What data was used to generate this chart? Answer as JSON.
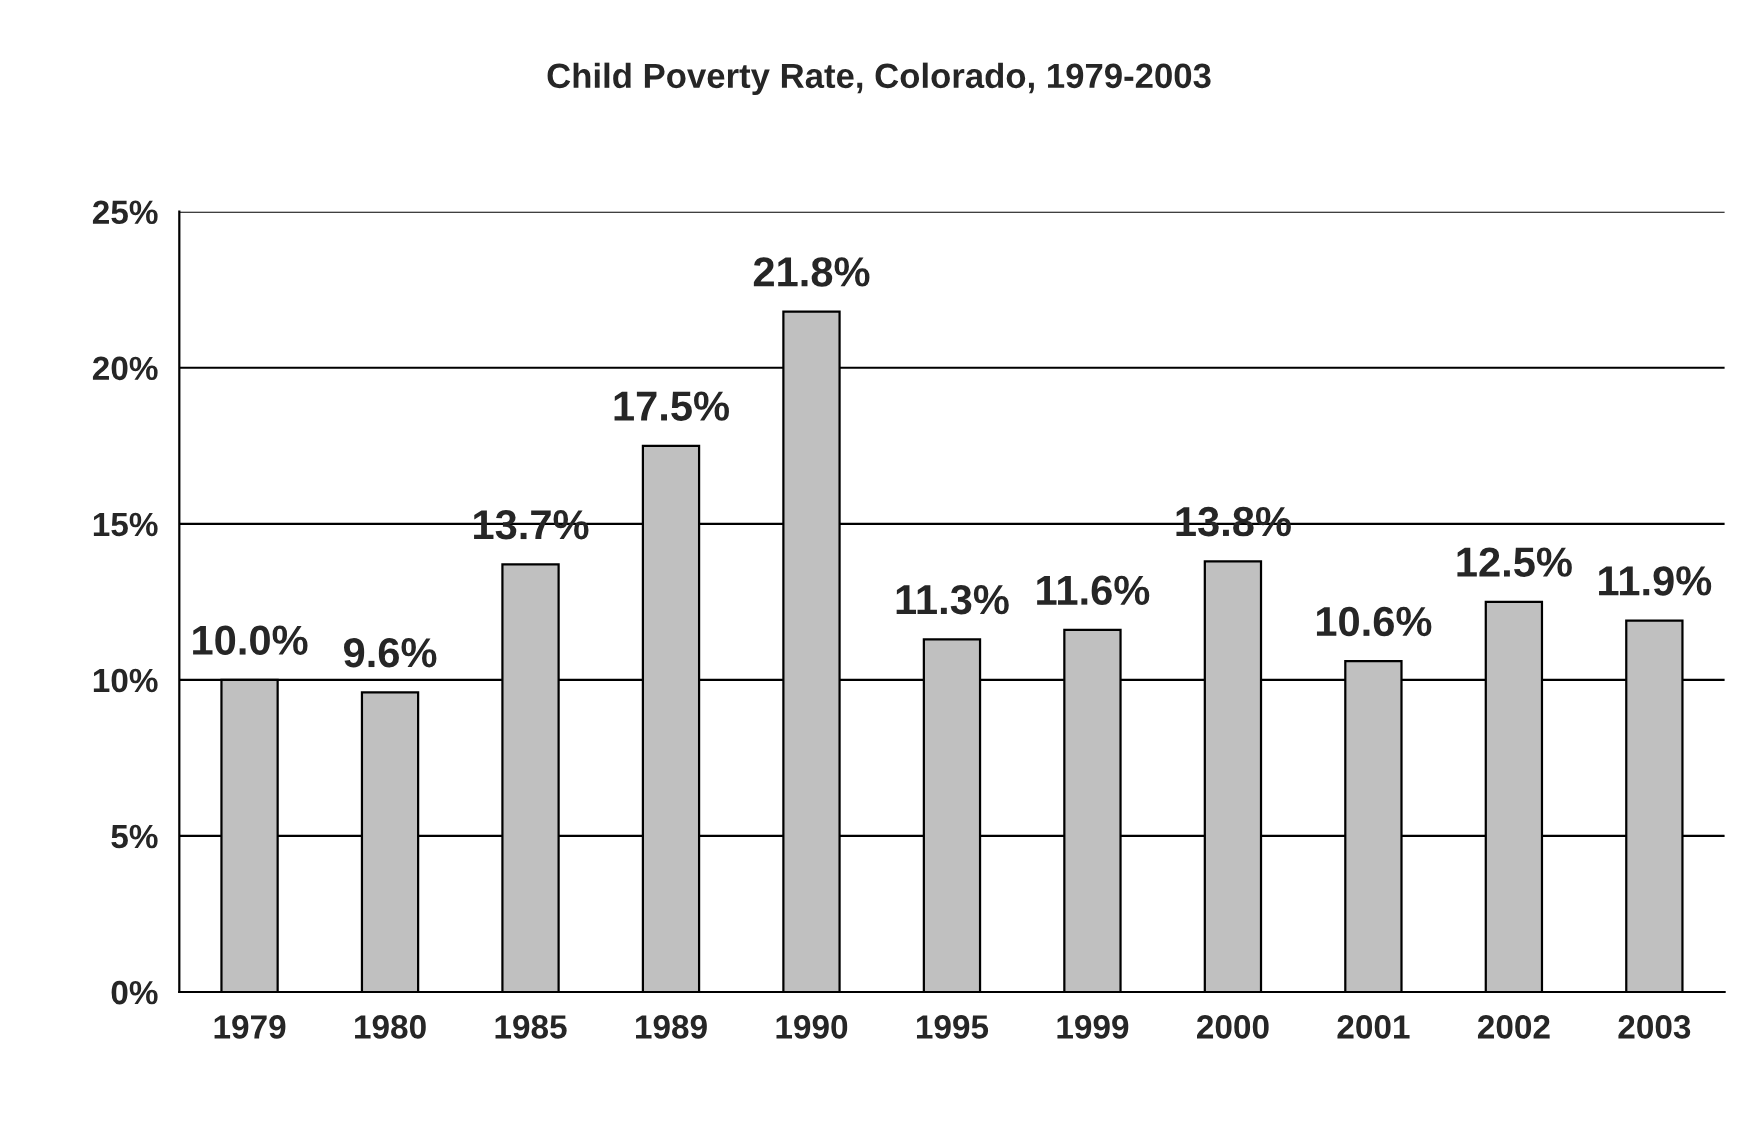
{
  "chart_data": {
    "type": "bar",
    "title": "Child Poverty Rate, Colorado, 1979-2003",
    "categories": [
      "1979",
      "1980",
      "1985",
      "1989",
      "1990",
      "1995",
      "1999",
      "2000",
      "2001",
      "2002",
      "2003"
    ],
    "values": [
      10.0,
      9.6,
      13.7,
      17.5,
      21.8,
      11.3,
      11.6,
      13.8,
      10.6,
      12.5,
      11.9
    ],
    "value_labels": [
      "10.0%",
      "9.6%",
      "13.7%",
      "17.5%",
      "21.8%",
      "11.3%",
      "11.6%",
      "13.8%",
      "10.6%",
      "12.5%",
      "11.9%"
    ],
    "color": "#c0c0c0",
    "ylim": [
      0,
      25
    ],
    "yticks": [
      {
        "value": 0,
        "label": "0%"
      },
      {
        "value": 5,
        "label": "5%"
      },
      {
        "value": 10,
        "label": "10%"
      },
      {
        "value": 15,
        "label": "15%"
      },
      {
        "value": 20,
        "label": "20%"
      },
      {
        "value": 25,
        "label": "25%"
      }
    ],
    "grid": "y",
    "legend": false
  }
}
